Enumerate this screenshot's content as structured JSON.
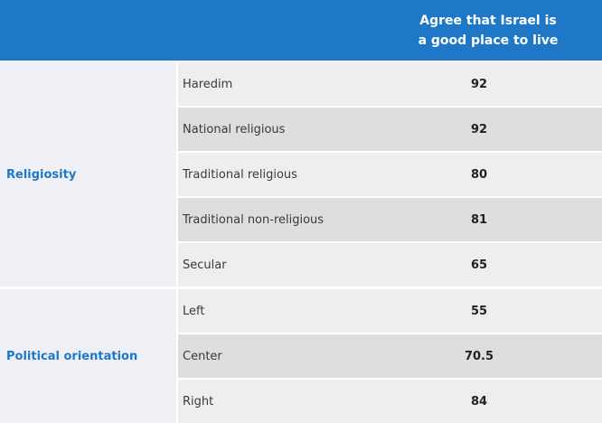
{
  "chart_data": {
    "type": "table",
    "column_header": [
      "Agree that Israel is",
      "a good place to live"
    ],
    "groups": [
      {
        "label": "Religiosity",
        "rows": [
          {
            "category": "Haredim",
            "value": "92"
          },
          {
            "category": "National religious",
            "value": "92"
          },
          {
            "category": "Traditional religious",
            "value": "80"
          },
          {
            "category": "Traditional non-religious",
            "value": "81"
          },
          {
            "category": "Secular",
            "value": "65"
          }
        ]
      },
      {
        "label": "Political orientation",
        "rows": [
          {
            "category": "Left",
            "value": "55"
          },
          {
            "category": "Center",
            "value": "70.5"
          },
          {
            "category": "Right",
            "value": "84"
          }
        ]
      }
    ]
  },
  "colors": {
    "header_bg": "#1f78c7",
    "group_label": "#1f78c7",
    "row_light": "#eeeeee",
    "row_dark": "#dedede"
  }
}
